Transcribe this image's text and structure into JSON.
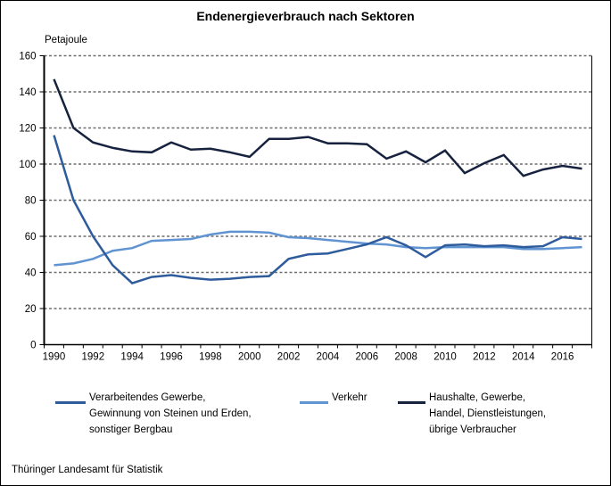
{
  "title": "Endenergieverbrauch nach Sektoren",
  "y_axis_unit_label": "Petajoule",
  "footer": "Thüringer Landesamt für Statistik",
  "chart_data": {
    "type": "line",
    "title": "Endenergieverbrauch nach Sektoren",
    "ylabel": "Petajoule",
    "ylim": [
      0,
      160
    ],
    "ytick_step": 20,
    "grid": "horizontal-dashed",
    "legend_position": "bottom",
    "gridline_color": "#6e6e6e",
    "axis_color": "#000000",
    "x": [
      1990,
      1991,
      1992,
      1993,
      1994,
      1995,
      1996,
      1997,
      1998,
      1999,
      2000,
      2001,
      2002,
      2003,
      2004,
      2005,
      2006,
      2007,
      2008,
      2009,
      2010,
      2011,
      2012,
      2013,
      2014,
      2015,
      2016,
      2017
    ],
    "x_tick_labels": [
      "1990",
      "1992",
      "1994",
      "1996",
      "1998",
      "2000",
      "2002",
      "2004",
      "2006",
      "2008",
      "2010",
      "2012",
      "2014",
      "2016"
    ],
    "y_tick_labels": [
      "0",
      "20",
      "40",
      "60",
      "80",
      "100",
      "120",
      "140",
      "160"
    ],
    "draw_order": [
      1,
      0,
      2
    ],
    "series": [
      {
        "name": "Verarbeitendes Gewerbe,\nGewinnung von Steinen und Erden,\nsonstiger Bergbau",
        "color": "#2e5b9b",
        "values": [
          116,
          80,
          60,
          44,
          34,
          37.5,
          38.5,
          37,
          36,
          36.5,
          37.5,
          38,
          47.5,
          50,
          50.5,
          53,
          55.5,
          59.5,
          55,
          48.5,
          55,
          55.5,
          54.5,
          55,
          54,
          54.5,
          59.5,
          58.5
        ]
      },
      {
        "name": "Verkehr",
        "color": "#5f93d2",
        "values": [
          44,
          45,
          47.5,
          52,
          53.5,
          57.5,
          58,
          58.5,
          61,
          62.5,
          62.5,
          62,
          59.5,
          59,
          58,
          57,
          56,
          55.5,
          54,
          53.5,
          54,
          54,
          54,
          54,
          53,
          53,
          53.5,
          54
        ]
      },
      {
        "name": "Haushalte, Gewerbe,\nHandel, Dienstleistungen,\nübrige Verbraucher",
        "color": "#16223e",
        "values": [
          147,
          120,
          112,
          109,
          107,
          106.5,
          112,
          108,
          108.5,
          106.5,
          104,
          114,
          114,
          115,
          111.5,
          111.5,
          111,
          103,
          107,
          101,
          107.5,
          95,
          100.5,
          105,
          93.5,
          97,
          99,
          97.5
        ]
      }
    ]
  }
}
